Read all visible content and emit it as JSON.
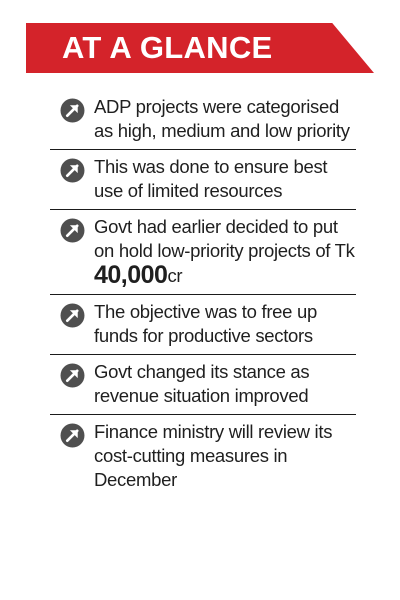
{
  "header": {
    "title": "AT A GLANCE"
  },
  "items": [
    {
      "text": "ADP projects were categorised as high, medium and low priority"
    },
    {
      "text": "This was done to ensure best use of limited resources"
    },
    {
      "text_before": "Govt had earlier decided to put on hold low-priority projects of Tk ",
      "number": "40,000",
      "text_after": "cr"
    },
    {
      "text": "The objective was to free up funds for productive sectors"
    },
    {
      "text": "Govt changed its stance as revenue situation improved"
    },
    {
      "text": "Finance ministry will review its cost-cutting measures in December"
    }
  ],
  "colors": {
    "banner": "#d4232a",
    "icon": "#4f4f4f",
    "text": "#1f1f1f"
  },
  "icons": {
    "bullet": "arrow-circle-icon"
  }
}
